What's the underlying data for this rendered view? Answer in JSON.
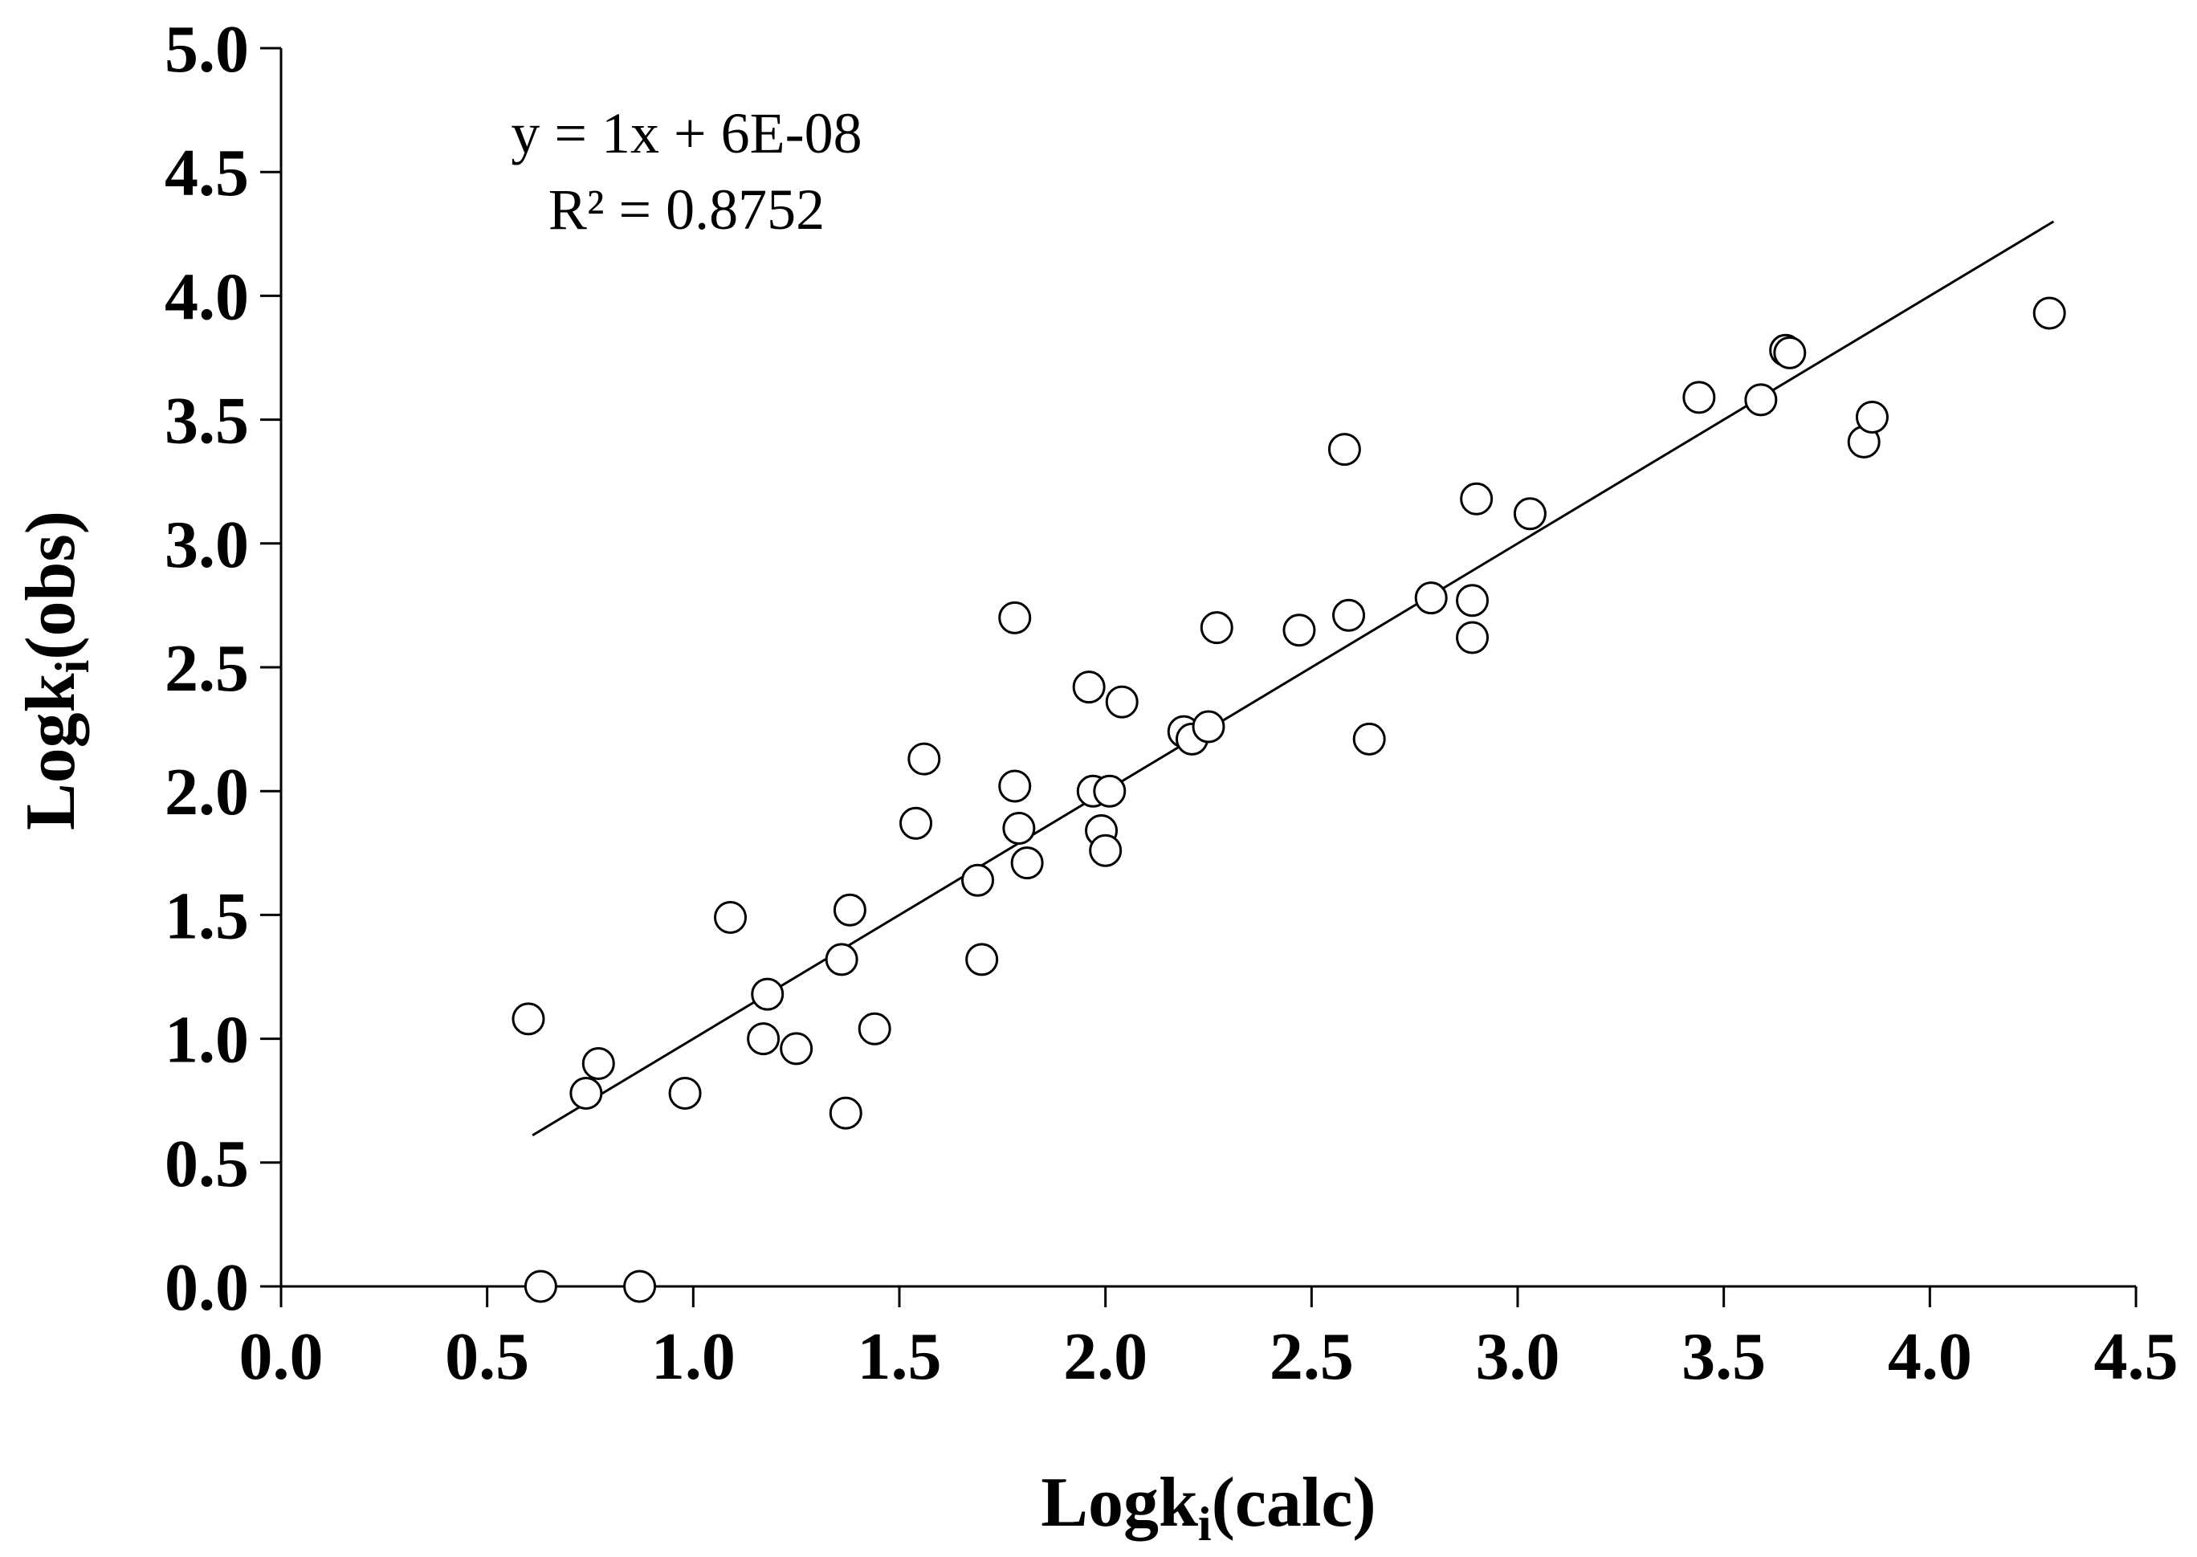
{
  "chart_data": {
    "type": "scatter",
    "xlabel": {
      "main": "Logk",
      "sub": "i",
      "suffix": "(calc)"
    },
    "ylabel": {
      "main": "Logk",
      "sub": "i",
      "suffix": "(obs)"
    },
    "xlim": [
      0,
      4.5
    ],
    "ylim": [
      0,
      5.0
    ],
    "x_ticks": [
      "0.0",
      "0.5",
      "1.0",
      "1.5",
      "2.0",
      "2.5",
      "3.0",
      "3.5",
      "4.0",
      "4.5"
    ],
    "y_ticks": [
      "0.0",
      "0.5",
      "1.0",
      "1.5",
      "2.0",
      "2.5",
      "3.0",
      "3.5",
      "4.0",
      "4.5",
      "5.0"
    ],
    "grid": false,
    "trendline": {
      "slope": 1,
      "intercept": 6e-08,
      "x_range": [
        0.61,
        4.3
      ]
    },
    "annotation": {
      "equation": "y = 1x + 6E-08",
      "r_squared": "R² = 0.8752"
    },
    "points": [
      [
        0.6,
        1.08
      ],
      [
        0.63,
        0.0
      ],
      [
        0.74,
        0.78
      ],
      [
        0.77,
        0.9
      ],
      [
        0.87,
        0.0
      ],
      [
        0.98,
        0.78
      ],
      [
        1.09,
        1.49
      ],
      [
        1.17,
        1.0
      ],
      [
        1.18,
        1.18
      ],
      [
        1.25,
        0.96
      ],
      [
        1.36,
        1.32
      ],
      [
        1.37,
        0.7
      ],
      [
        1.38,
        1.52
      ],
      [
        1.44,
        1.04
      ],
      [
        1.54,
        1.87
      ],
      [
        1.56,
        2.13
      ],
      [
        1.69,
        1.64
      ],
      [
        1.7,
        1.32
      ],
      [
        1.78,
        2.7
      ],
      [
        1.78,
        2.02
      ],
      [
        1.79,
        1.85
      ],
      [
        1.81,
        1.71
      ],
      [
        1.96,
        2.42
      ],
      [
        1.97,
        2.0
      ],
      [
        1.99,
        1.84
      ],
      [
        2.0,
        1.76
      ],
      [
        2.01,
        2.0
      ],
      [
        2.04,
        2.36
      ],
      [
        2.19,
        2.24
      ],
      [
        2.21,
        2.21
      ],
      [
        2.25,
        2.26
      ],
      [
        2.27,
        2.66
      ],
      [
        2.47,
        2.65
      ],
      [
        2.58,
        3.38
      ],
      [
        2.59,
        2.71
      ],
      [
        2.64,
        2.21
      ],
      [
        2.79,
        2.78
      ],
      [
        2.89,
        2.62
      ],
      [
        2.89,
        2.77
      ],
      [
        2.9,
        3.18
      ],
      [
        3.03,
        3.12
      ],
      [
        3.44,
        3.59
      ],
      [
        3.59,
        3.58
      ],
      [
        3.65,
        3.78
      ],
      [
        3.66,
        3.77
      ],
      [
        3.84,
        3.41
      ],
      [
        3.86,
        3.51
      ],
      [
        4.29,
        3.93
      ]
    ]
  }
}
